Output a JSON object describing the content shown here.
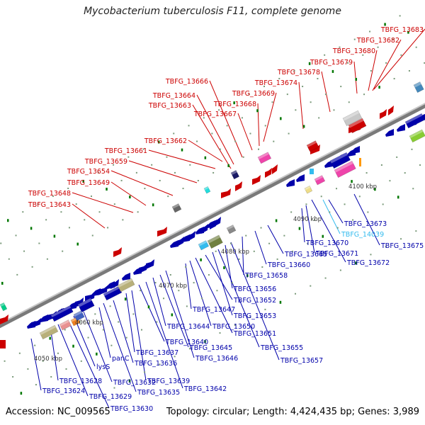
{
  "title": "Mycobacterium tuberculosis F11, complete genome",
  "footer": {
    "accession": "Accession: NC_009565",
    "summary": "Topology: circular; Length: 4,424,435 bp; Genes: 3,989"
  },
  "colors": {
    "highlight": "#cc0000",
    "normal": "#0000aa",
    "selected": "#33bbee",
    "backbone": "#999999",
    "tick": "#007700"
  },
  "scale_labels": [
    "4050 kbp",
    "4060 kbp",
    "4070 kbp",
    "4080 kbp",
    "4090 kbp",
    "4100 kbp"
  ],
  "genes_highlighted": [
    "TBFG_13643",
    "TBFG_13648",
    "TBFG_13649",
    "TBFG_13654",
    "TBFG_13659",
    "TBFG_13661",
    "TBFG_13662",
    "TBFG_13663",
    "TBFG_13664",
    "TBFG_13666",
    "TBFG_13667",
    "TBFG_13668",
    "TBFG_13669",
    "TBFG_13674",
    "TBFG_13678",
    "TBFG_13679",
    "TBFG_13680",
    "TBFG_13682",
    "TBFG_13683"
  ],
  "genes_other": [
    "TBFG_13624",
    "TBFG_13628",
    "TBFG_13629",
    "TBFG_13630",
    "lysS",
    "TBFG_13632",
    "panC",
    "TBFG_13635",
    "TBFG_13636",
    "TBFG_13637",
    "TBFG_13639",
    "TBFG_13640",
    "TBFG_13642",
    "TBFG_13644",
    "TBFG_13645",
    "TBFG_13646",
    "TBFG_13647",
    "TBFG_13650",
    "TBFG_13651",
    "TBFG_13652",
    "TBFG_13653",
    "TBFG_13655",
    "TBFG_13656",
    "TBFG_13657",
    "TBFG_13658",
    "TBFG_13660",
    "TBFG_13665",
    "TBFG_13670",
    "TBFG_13671",
    "TBFG_13672",
    "TBFG_13673",
    "TBFG_13675"
  ],
  "gene_selected": "TBFG_14039"
}
